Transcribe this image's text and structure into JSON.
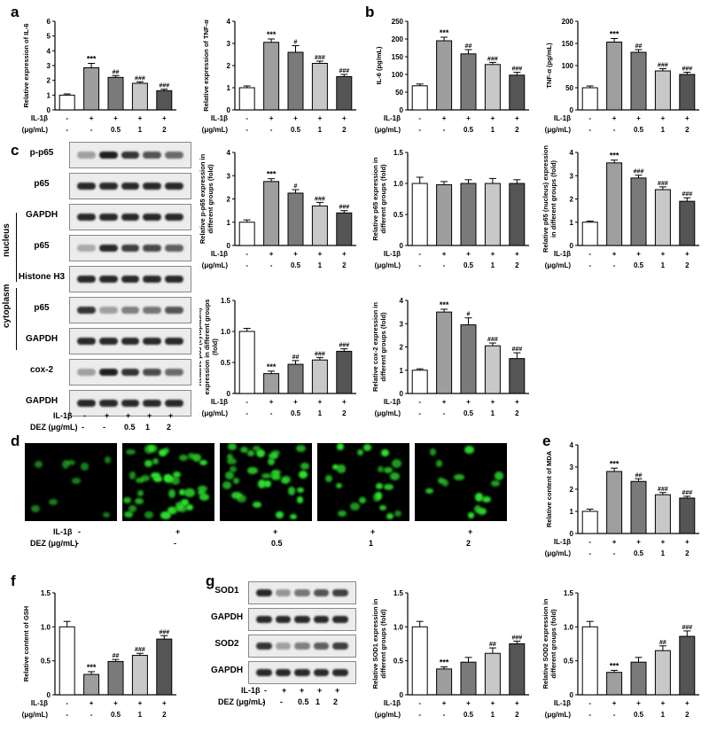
{
  "panel_letters": {
    "a": "a",
    "b": "b",
    "c": "c",
    "d": "d",
    "e": "e",
    "f": "f",
    "g": "g"
  },
  "treatment_labels": {
    "il1b": "IL-1β",
    "dez": "DEZ (μg/mL)",
    "il1b_values": [
      "-",
      "+",
      "+",
      "+",
      "+"
    ],
    "dez_values": [
      "-",
      "-",
      "0.5",
      "1",
      "2"
    ]
  },
  "colors": [
    "#ffffff",
    "#9e9e9e",
    "#7a7a7a",
    "#c8c8c8",
    "#555555"
  ],
  "blot_c_labels": [
    "p-p65",
    "p65",
    "GAPDH",
    "p65",
    "Histone H3",
    "p65",
    "GAPDH",
    "cox-2",
    "GAPDH"
  ],
  "blot_c_groups": {
    "nucleus": "nucleus",
    "cytoplasm": "cytoplasm"
  },
  "blot_g_labels": [
    "SOD1",
    "GAPDH",
    "SOD2",
    "GAPDH"
  ],
  "chart_data": [
    {
      "id": "a1",
      "type": "bar",
      "ylabel": "Relative expression of IL-6",
      "ylim": [
        0,
        6
      ],
      "yticks": [
        0,
        1,
        2,
        3,
        4,
        5,
        6
      ],
      "values": [
        1.0,
        2.85,
        2.2,
        1.8,
        1.3
      ],
      "errors": [
        0.08,
        0.3,
        0.12,
        0.1,
        0.1
      ],
      "sig": [
        "",
        "***",
        "##",
        "###",
        "###"
      ]
    },
    {
      "id": "a2",
      "type": "bar",
      "ylabel": "Relative expression of TNF-α",
      "ylim": [
        0,
        4
      ],
      "yticks": [
        0,
        1,
        2,
        3,
        4
      ],
      "values": [
        1.0,
        3.05,
        2.6,
        2.1,
        1.5
      ],
      "errors": [
        0.08,
        0.15,
        0.3,
        0.1,
        0.1
      ],
      "sig": [
        "",
        "***",
        "#",
        "###",
        "###"
      ]
    },
    {
      "id": "b1",
      "type": "bar",
      "ylabel": "IL-6 (pg/mL)",
      "ylim": [
        0,
        250
      ],
      "yticks": [
        0,
        50,
        100,
        150,
        200,
        250
      ],
      "values": [
        68,
        195,
        158,
        128,
        98
      ],
      "errors": [
        5,
        10,
        12,
        6,
        8
      ],
      "sig": [
        "",
        "***",
        "##",
        "###",
        "###"
      ]
    },
    {
      "id": "b2",
      "type": "bar",
      "ylabel": "TNF-α (pg/mL)",
      "ylim": [
        0,
        200
      ],
      "yticks": [
        0,
        50,
        100,
        150,
        200
      ],
      "values": [
        50,
        153,
        130,
        88,
        80
      ],
      "errors": [
        4,
        8,
        6,
        5,
        5
      ],
      "sig": [
        "",
        "***",
        "##",
        "###",
        "###"
      ]
    },
    {
      "id": "c1",
      "type": "bar",
      "ylabel": "Relative p-p65 expression in different groups (fold)",
      "ylim": [
        0,
        4
      ],
      "yticks": [
        0,
        1,
        2,
        3,
        4
      ],
      "values": [
        1.0,
        2.75,
        2.25,
        1.7,
        1.4
      ],
      "errors": [
        0.1,
        0.12,
        0.15,
        0.15,
        0.1
      ],
      "sig": [
        "",
        "***",
        "#",
        "###",
        "###"
      ]
    },
    {
      "id": "c2",
      "type": "bar",
      "ylabel": "Relative p65 expression in different groups (fold)",
      "ylim": [
        0,
        1.5
      ],
      "yticks": [
        0,
        0.5,
        1.0,
        1.5
      ],
      "values": [
        1.0,
        0.98,
        1.0,
        1.0,
        1.0
      ],
      "errors": [
        0.1,
        0.05,
        0.06,
        0.08,
        0.06
      ],
      "sig": [
        "",
        "",
        "",
        "",
        ""
      ]
    },
    {
      "id": "c3",
      "type": "bar",
      "ylabel": "Relative p65 (nucleus) expression in different groups (fold)",
      "ylim": [
        0,
        4
      ],
      "yticks": [
        0,
        1,
        2,
        3,
        4
      ],
      "values": [
        1.0,
        3.55,
        2.9,
        2.4,
        1.9
      ],
      "errors": [
        0.05,
        0.12,
        0.12,
        0.12,
        0.15
      ],
      "sig": [
        "",
        "***",
        "###",
        "###",
        "###"
      ]
    },
    {
      "id": "c4",
      "type": "bar",
      "ylabel": "Relative p65 (cytoplasm) expression in different groups (fold)",
      "ylim": [
        0,
        1.5
      ],
      "yticks": [
        0,
        0.5,
        1.0,
        1.5
      ],
      "values": [
        1.0,
        0.32,
        0.47,
        0.54,
        0.68
      ],
      "errors": [
        0.05,
        0.04,
        0.06,
        0.04,
        0.04
      ],
      "sig": [
        "",
        "***",
        "##",
        "###",
        "###"
      ]
    },
    {
      "id": "c5",
      "type": "bar",
      "ylabel": "Relative cox-2 expression in different groups (fold)",
      "ylim": [
        0,
        4
      ],
      "yticks": [
        0,
        1,
        2,
        3,
        4
      ],
      "values": [
        1.0,
        3.5,
        2.95,
        2.05,
        1.5
      ],
      "errors": [
        0.06,
        0.12,
        0.3,
        0.12,
        0.25
      ],
      "sig": [
        "",
        "***",
        "#",
        "###",
        "###"
      ]
    },
    {
      "id": "e1",
      "type": "bar",
      "ylabel": "Relative content of MDA",
      "ylim": [
        0,
        4
      ],
      "yticks": [
        0,
        1,
        2,
        3,
        4
      ],
      "values": [
        1.0,
        2.8,
        2.35,
        1.75,
        1.6
      ],
      "errors": [
        0.1,
        0.15,
        0.12,
        0.1,
        0.08
      ],
      "sig": [
        "",
        "***",
        "##",
        "###",
        "###"
      ]
    },
    {
      "id": "f1",
      "type": "bar",
      "ylabel": "Relative content of GSH",
      "ylim": [
        0,
        1.5
      ],
      "yticks": [
        0,
        0.5,
        1.0,
        1.5
      ],
      "values": [
        1.0,
        0.3,
        0.49,
        0.58,
        0.82
      ],
      "errors": [
        0.08,
        0.04,
        0.03,
        0.03,
        0.05
      ],
      "sig": [
        "",
        "***",
        "##",
        "###",
        "###"
      ]
    },
    {
      "id": "g1",
      "type": "bar",
      "ylabel": "Relative SOD1 expression in different groups (fold)",
      "ylim": [
        0,
        1.5
      ],
      "yticks": [
        0,
        0.5,
        1.0,
        1.5
      ],
      "values": [
        1.0,
        0.38,
        0.48,
        0.61,
        0.75
      ],
      "errors": [
        0.08,
        0.03,
        0.07,
        0.08,
        0.04
      ],
      "sig": [
        "",
        "***",
        "",
        "##",
        "###"
      ]
    },
    {
      "id": "g2",
      "type": "bar",
      "ylabel": "Relative SOD2 expression in different groups (fold)",
      "ylim": [
        0,
        1.5
      ],
      "yticks": [
        0,
        0.5,
        1.0,
        1.5
      ],
      "values": [
        1.0,
        0.33,
        0.48,
        0.65,
        0.86
      ],
      "errors": [
        0.08,
        0.03,
        0.07,
        0.07,
        0.08
      ],
      "sig": [
        "",
        "***",
        "",
        "##",
        "###"
      ]
    }
  ]
}
